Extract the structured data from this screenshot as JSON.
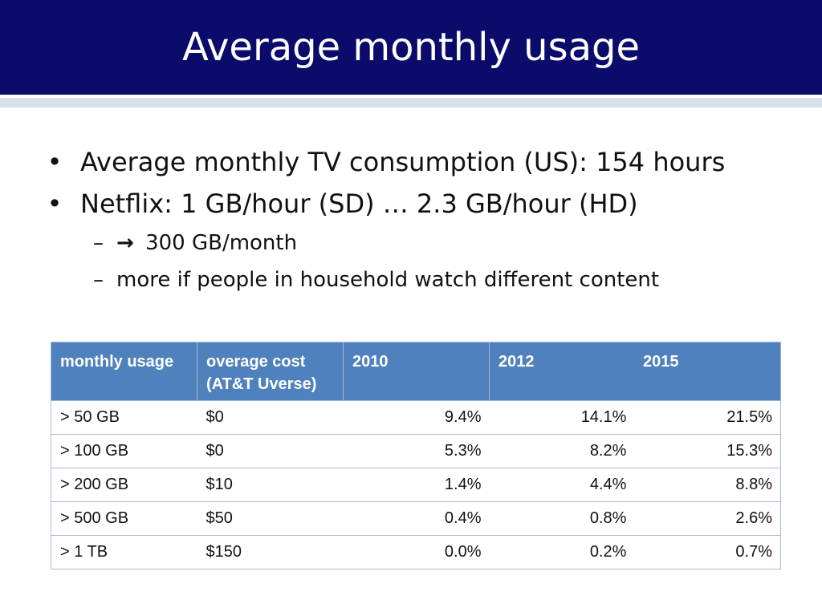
{
  "title": "Average monthly usage",
  "bullets": [
    {
      "text": "Average monthly TV consumption (US): 154 hours"
    },
    {
      "text": "Netflix: 1 GB/hour (SD) … 2.3 GB/hour (HD)"
    }
  ],
  "sub_bullets": [
    {
      "arrow": "→",
      "text": "300 GB/month"
    },
    {
      "text": "more if people in household watch different content"
    }
  ],
  "table": {
    "headers": [
      "monthly usage",
      "overage cost",
      "(AT&T Uverse)",
      "2010",
      "2012",
      "2015"
    ],
    "rows": [
      [
        "> 50 GB",
        "$0",
        "9.4%",
        "14.1%",
        "21.5%"
      ],
      [
        "> 100 GB",
        "$0",
        "5.3%",
        "8.2%",
        "15.3%"
      ],
      [
        "> 200 GB",
        "$10",
        "1.4%",
        "4.4%",
        "8.8%"
      ],
      [
        "> 500 GB",
        "$50",
        "0.4%",
        "0.8%",
        "2.6%"
      ],
      [
        "> 1 TB",
        "$150",
        "0.0%",
        "0.2%",
        "0.7%"
      ]
    ]
  },
  "colors": {
    "title_bg": "#0b0b6b",
    "header_bg": "#4f81bd",
    "rule": "#d6e0ec"
  }
}
